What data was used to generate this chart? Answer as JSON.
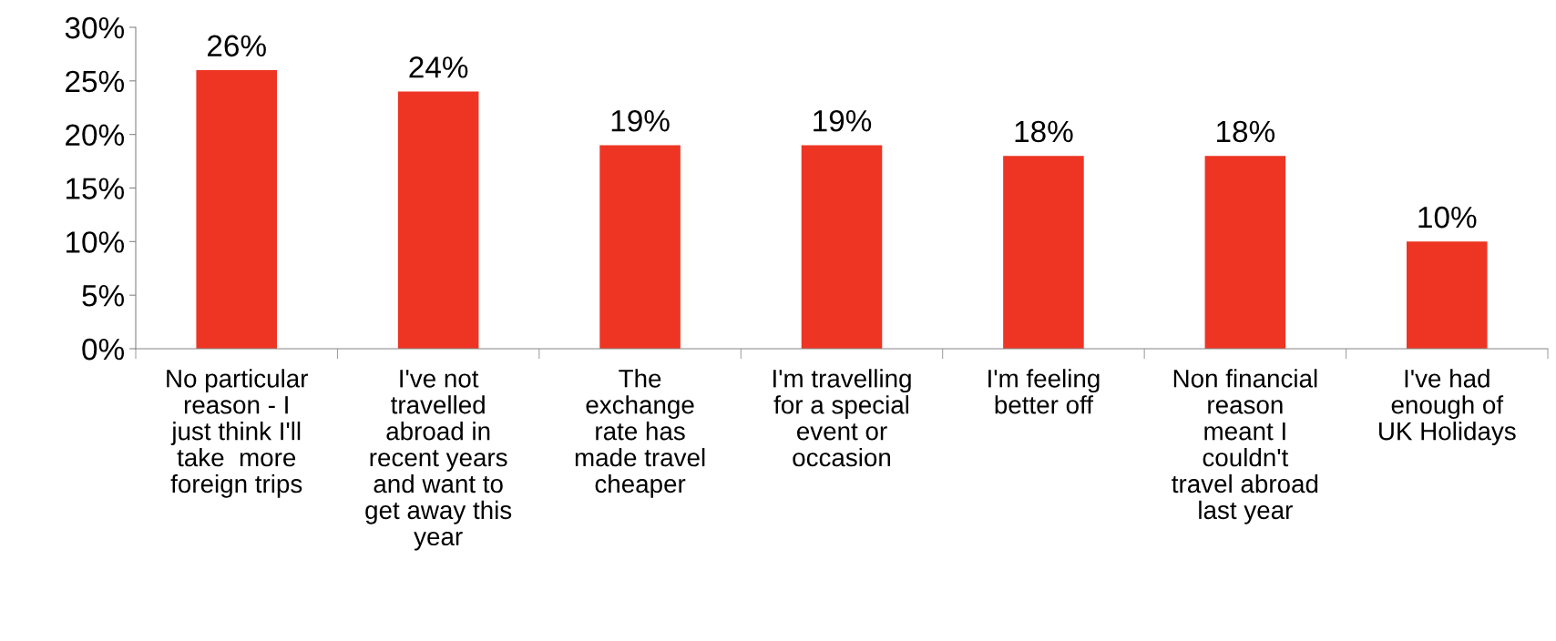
{
  "chart_data": {
    "type": "bar",
    "categories": [
      "No particular\nreason - I\njust think I'll\ntake  more\nforeign trips",
      "I've not\ntravelled\nabroad in\nrecent years\nand want to\nget away this\nyear",
      "The\nexchange\nrate has\nmade travel\ncheaper",
      "I'm travelling\nfor a special\nevent or\noccasion",
      "I'm feeling\nbetter off",
      "Non financial\nreason\nmeant I\ncouldn't\ntravel abroad\nlast year",
      "I've had\nenough of\nUK Holidays"
    ],
    "values": [
      26,
      24,
      19,
      19,
      18,
      18,
      10
    ],
    "value_labels": [
      "26%",
      "24%",
      "19%",
      "19%",
      "18%",
      "18%",
      "10%"
    ],
    "color": "#ee3524",
    "ylim": [
      0,
      30
    ],
    "yticks": [
      {
        "value": 0,
        "label": "0%"
      },
      {
        "value": 5,
        "label": "5%"
      },
      {
        "value": 10,
        "label": "10%"
      },
      {
        "value": 15,
        "label": "15%"
      },
      {
        "value": 20,
        "label": "20%"
      },
      {
        "value": 25,
        "label": "25%"
      },
      {
        "value": 30,
        "label": "30%"
      }
    ],
    "grid": false,
    "legend": false
  }
}
